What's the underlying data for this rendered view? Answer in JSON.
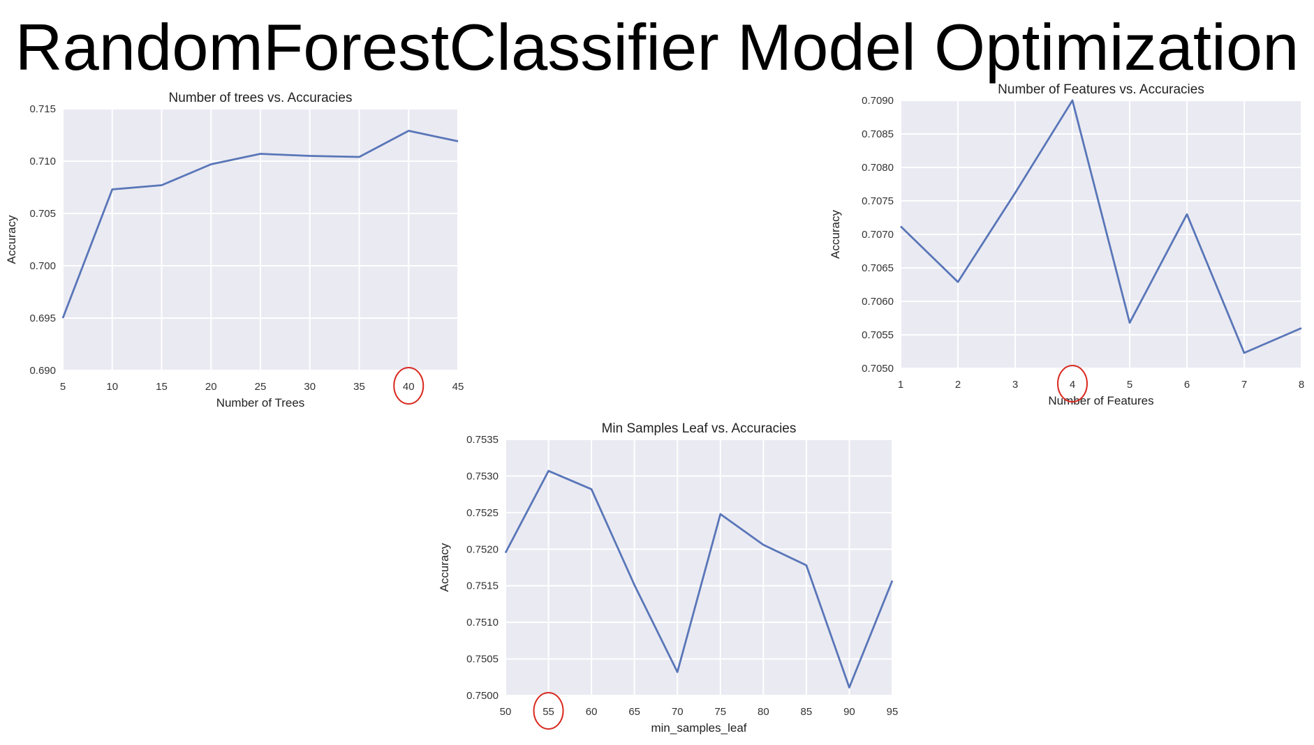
{
  "page": {
    "title": "RandomForestClassifier Model Optimization"
  },
  "chart_data": [
    {
      "id": "trees",
      "type": "line",
      "title": "Number of trees vs. Accuracies",
      "xlabel": "Number of Trees",
      "ylabel": "Accuracy",
      "x": [
        5,
        10,
        15,
        20,
        25,
        30,
        35,
        40,
        45
      ],
      "values": [
        0.695,
        0.7073,
        0.7077,
        0.7097,
        0.7107,
        0.7105,
        0.7104,
        0.7129,
        0.7119
      ],
      "xlim": [
        5,
        45
      ],
      "ylim": [
        0.69,
        0.715
      ],
      "xticks": [
        "5",
        "10",
        "15",
        "20",
        "25",
        "30",
        "35",
        "40",
        "45"
      ],
      "yticks": [
        "0.690",
        "0.695",
        "0.700",
        "0.705",
        "0.710",
        "0.715"
      ],
      "ytick_values": [
        0.69,
        0.695,
        0.7,
        0.705,
        0.71,
        0.715
      ],
      "grid": true,
      "highlight_x": 40,
      "line_color": "#5976b8",
      "highlight_color": "#d92a20"
    },
    {
      "id": "features",
      "type": "line",
      "title": "Number of Features vs. Accuracies",
      "xlabel": "Number of Features",
      "ylabel": "Accuracy",
      "x": [
        1,
        2,
        3,
        4,
        5,
        6,
        7,
        8
      ],
      "values": [
        0.70712,
        0.70629,
        0.70762,
        0.709,
        0.70568,
        0.7073,
        0.70523,
        0.7056
      ],
      "xlim": [
        1,
        8
      ],
      "ylim": [
        0.705,
        0.709
      ],
      "xticks": [
        "1",
        "2",
        "3",
        "4",
        "5",
        "6",
        "7",
        "8"
      ],
      "yticks": [
        "0.7050",
        "0.7055",
        "0.7060",
        "0.7065",
        "0.7070",
        "0.7075",
        "0.7080",
        "0.7085",
        "0.7090"
      ],
      "ytick_values": [
        0.705,
        0.7055,
        0.706,
        0.7065,
        0.707,
        0.7075,
        0.708,
        0.7085,
        0.709
      ],
      "grid": true,
      "highlight_x": 4,
      "line_color": "#5976b8",
      "highlight_color": "#d92a20"
    },
    {
      "id": "leaf",
      "type": "line",
      "title": "Min Samples Leaf vs. Accuracies",
      "xlabel": "min_samples_leaf",
      "ylabel": "Accuracy",
      "x": [
        50,
        55,
        60,
        65,
        70,
        75,
        80,
        85,
        90,
        95
      ],
      "values": [
        0.75195,
        0.75307,
        0.75282,
        0.75151,
        0.75032,
        0.75248,
        0.75206,
        0.75178,
        0.75011,
        0.75157
      ],
      "xlim": [
        50,
        95
      ],
      "ylim": [
        0.75,
        0.7535
      ],
      "xticks": [
        "50",
        "55",
        "60",
        "65",
        "70",
        "75",
        "80",
        "85",
        "90",
        "95"
      ],
      "yticks": [
        "0.7500",
        "0.7505",
        "0.7510",
        "0.7515",
        "0.7520",
        "0.7525",
        "0.7530",
        "0.7535"
      ],
      "ytick_values": [
        0.75,
        0.7505,
        0.751,
        0.7515,
        0.752,
        0.7525,
        0.753,
        0.7535
      ],
      "grid": true,
      "highlight_x": 55,
      "line_color": "#5976b8",
      "highlight_color": "#d92a20"
    }
  ]
}
